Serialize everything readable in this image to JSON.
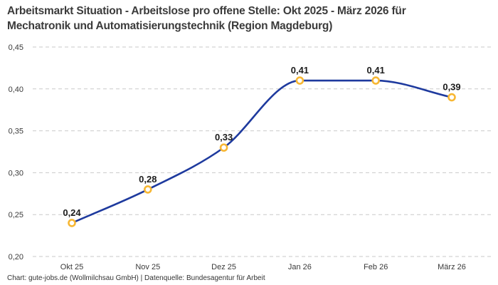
{
  "title": "Arbeitsmarkt Situation - Arbeitslose pro offene Stelle: Okt 2025 - März 2026 für Mechatronik und Automatisierungstechnik (Region Magdeburg)",
  "footer": "Chart: gute-jobs.de (Wollmilchsau GmbH) | Datenquelle: Bundesagentur für Arbeit",
  "chart_data": {
    "type": "line",
    "title": "Arbeitsmarkt Situation - Arbeitslose pro offene Stelle: Okt 2025 - März 2026 für Mechatronik und Automatisierungstechnik (Region Magdeburg)",
    "categories": [
      "Okt 25",
      "Nov 25",
      "Dez 25",
      "Jan 26",
      "Feb 26",
      "März 26"
    ],
    "values": [
      0.24,
      0.28,
      0.33,
      0.41,
      0.41,
      0.39
    ],
    "value_labels": [
      "0,24",
      "0,28",
      "0,33",
      "0,41",
      "0,41",
      "0,39"
    ],
    "xlabel": "",
    "ylabel": "",
    "ylim": [
      0.2,
      0.45
    ],
    "yticks": [
      0.2,
      0.25,
      0.3,
      0.35,
      0.4,
      0.45
    ],
    "ytick_labels": [
      "0,20",
      "0,25",
      "0,30",
      "0,35",
      "0,40",
      "0,45"
    ],
    "grid": "horizontal-dashed",
    "legend": "none",
    "line_smoothing": "monotone-cubic",
    "colors": {
      "line": "#1e3a9e",
      "marker_ring": "#f7b733",
      "marker_fill": "#ffffff",
      "gridline": "#c9c9c9",
      "title_text": "#3b3b3b",
      "tick_text": "#3a3a3a",
      "value_text": "#1c1c1c"
    }
  }
}
